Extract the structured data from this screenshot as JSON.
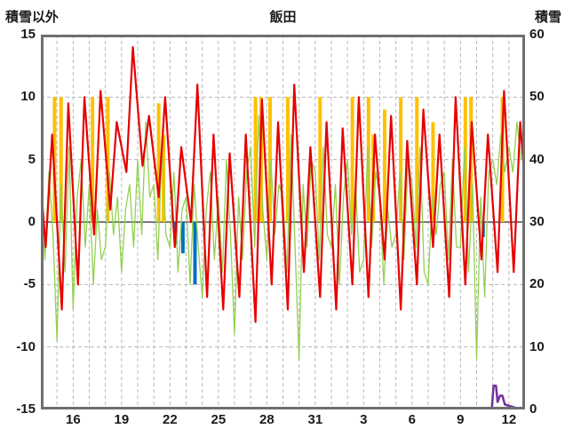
{
  "header": {
    "left_label": "積雪以外",
    "title": "飯田",
    "right_label": "積雪"
  },
  "chart_data": {
    "type": "line",
    "title": "飯田",
    "left_axis": {
      "label": "積雪以外",
      "min": -15,
      "max": 15,
      "ticks": [
        15,
        10,
        5,
        0,
        -5,
        -10,
        -15
      ]
    },
    "right_axis": {
      "label": "積雪",
      "min": 0,
      "max": 60,
      "ticks": [
        60,
        50,
        40,
        30,
        20,
        10,
        0
      ]
    },
    "x_axis": {
      "tick_labels": [
        "16",
        "19",
        "22",
        "25",
        "28",
        "31",
        "3",
        "6",
        "9",
        "12"
      ],
      "tick_positions": [
        2,
        5,
        8,
        11,
        14,
        17,
        20,
        23,
        26,
        29
      ],
      "domain": [
        0,
        30
      ],
      "start_day": 14,
      "gridline_every_days": 1
    },
    "grid": {
      "color": "#b8b8b8",
      "zero_line_color": "#7a7a7a",
      "frame_color": "#6f6f6f"
    },
    "series": [
      {
        "name": "sunshine-bars",
        "type": "bar",
        "color": "#ffc000",
        "bar_width": 0.22,
        "points": [
          [
            0.85,
            10
          ],
          [
            1.25,
            10
          ],
          [
            3.2,
            10
          ],
          [
            4.15,
            10
          ],
          [
            7.3,
            9.5
          ],
          [
            7.6,
            7
          ],
          [
            13.3,
            10
          ],
          [
            13.65,
            10
          ],
          [
            14.2,
            10
          ],
          [
            15.3,
            10
          ],
          [
            17.3,
            10
          ],
          [
            19.3,
            10
          ],
          [
            20.3,
            10
          ],
          [
            20.6,
            7
          ],
          [
            21.3,
            9
          ],
          [
            22.3,
            10
          ],
          [
            23.3,
            10
          ],
          [
            24.3,
            8
          ],
          [
            26.3,
            10
          ],
          [
            26.65,
            10
          ],
          [
            28.6,
            10
          ]
        ]
      },
      {
        "name": "precipitation-bars",
        "type": "bar",
        "color": "#0070c0",
        "bar_width": 0.22,
        "points": [
          [
            8.35,
            -1.8
          ],
          [
            8.8,
            -2.5
          ],
          [
            9.55,
            -5
          ],
          [
            27.4,
            -1.2
          ]
        ]
      },
      {
        "name": "green-series",
        "type": "line",
        "color": "#92d050",
        "width": 1.3,
        "x_step": 0.25,
        "values": [
          2,
          -3,
          4,
          -1,
          -9.5,
          3,
          -4,
          6,
          -7,
          2,
          5,
          -2,
          3,
          -5,
          1,
          -3,
          -2,
          4,
          -1,
          2,
          -4,
          1,
          3,
          -2,
          5,
          -1,
          8,
          2,
          3,
          -3,
          6,
          -1,
          -2,
          4,
          -4,
          1,
          2,
          -5,
          3,
          -2,
          -6,
          1,
          4,
          -3,
          2,
          -4,
          5,
          -1,
          -9,
          2,
          -3,
          4,
          6,
          -2,
          8.5,
          1,
          -3,
          5,
          -1,
          3,
          2,
          -4,
          7,
          -2,
          -11,
          3,
          -2,
          5,
          4,
          -3,
          6,
          -1,
          -2,
          3,
          -5,
          2,
          5,
          -1,
          3,
          -4,
          -3,
          6,
          -2,
          4,
          2,
          -5,
          1,
          -2,
          -1,
          4,
          -3,
          5,
          3,
          -2,
          6,
          -4,
          -5,
          2,
          -1,
          3,
          4,
          -3,
          5,
          -2,
          -2,
          6,
          -4,
          3,
          -11,
          2,
          -6,
          4,
          5,
          3,
          7,
          4,
          6,
          4,
          8,
          5
        ]
      },
      {
        "name": "temperature",
        "type": "zigzag",
        "color": "#e60000",
        "width": 2.2,
        "daily_min": [
          -2,
          -7,
          -5,
          -1,
          1,
          4,
          4.5,
          2,
          -2,
          0,
          -6,
          -7,
          -6,
          -8,
          -5,
          -7,
          -4,
          -6,
          -7,
          -5,
          -6,
          -3,
          -7,
          -5,
          -2,
          -6,
          -5,
          -3,
          -4,
          -4
        ],
        "daily_max": [
          7,
          9.5,
          10,
          10.5,
          8,
          14,
          8.5,
          10,
          6,
          11,
          7,
          5.5,
          7,
          9.8,
          8,
          11,
          6,
          8,
          7.5,
          10,
          7,
          8.5,
          6.5,
          9,
          7,
          10,
          8,
          7,
          10.5,
          8
        ],
        "edge_values": [
          3,
          3
        ]
      },
      {
        "name": "snow-depth",
        "type": "line-right",
        "color": "#7030a0",
        "width": 2.5,
        "points": [
          [
            0,
            0
          ],
          [
            27.8,
            0
          ],
          [
            27.95,
            0.3
          ],
          [
            28.05,
            3.8
          ],
          [
            28.2,
            3.8
          ],
          [
            28.3,
            1.2
          ],
          [
            28.45,
            2.2
          ],
          [
            28.6,
            2.2
          ],
          [
            28.75,
            0.8
          ],
          [
            29.0,
            0.6
          ],
          [
            29.5,
            0.2
          ],
          [
            30,
            0
          ]
        ]
      }
    ]
  }
}
